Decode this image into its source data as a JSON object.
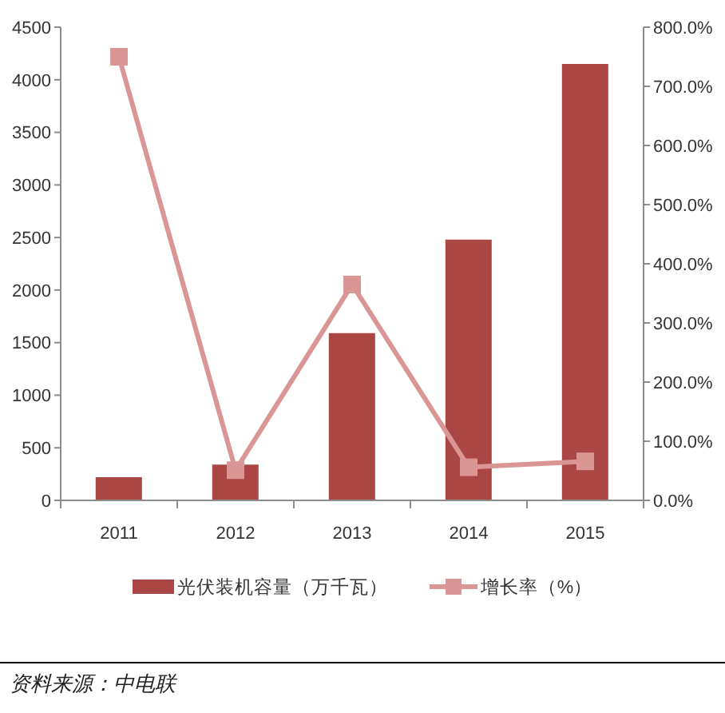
{
  "chart_data": {
    "type": "bar",
    "categories": [
      "2011",
      "2012",
      "2013",
      "2014",
      "2015"
    ],
    "series": [
      {
        "name": "光伏装机容量（万千瓦）",
        "color": "#aa4643",
        "values": [
          220,
          340,
          1590,
          2480,
          4150
        ]
      },
      {
        "name": "增长率（%）",
        "type": "line",
        "axis": "y2",
        "color": "#d99694",
        "values": [
          750,
          51,
          365,
          56,
          66
        ]
      }
    ],
    "ylim": [
      0,
      4500
    ],
    "yticks": [
      0,
      500,
      1000,
      1500,
      2000,
      2500,
      3000,
      3500,
      4000,
      4500
    ],
    "y2lim": [
      0,
      800
    ],
    "y2ticks": [
      {
        "value": 0,
        "label": "0.0%"
      },
      {
        "value": 100,
        "label": "100.0%"
      },
      {
        "value": 200,
        "label": "200.0%"
      },
      {
        "value": 300,
        "label": "300.0%"
      },
      {
        "value": 400,
        "label": "400.0%"
      },
      {
        "value": 500,
        "label": "500.0%"
      },
      {
        "value": 600,
        "label": "600.0%"
      },
      {
        "value": 700,
        "label": "700.0%"
      },
      {
        "value": 800,
        "label": "800.0%"
      }
    ],
    "marker": "square",
    "legend": "bottom",
    "annotations": [
      "资料来源：中电联"
    ]
  }
}
